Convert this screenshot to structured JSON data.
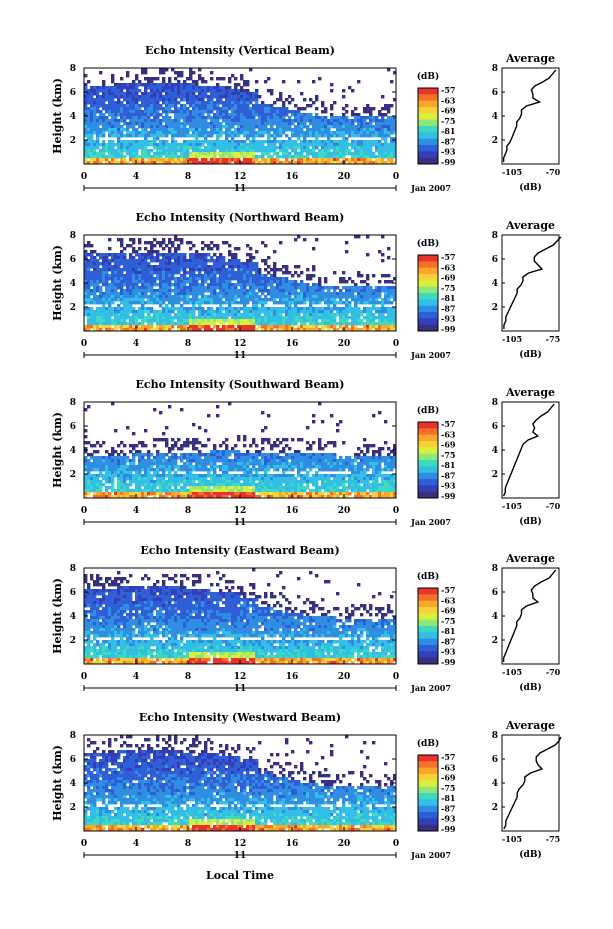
{
  "panels": [
    {
      "title": "Echo Intensity (Vertical Beam)",
      "avg_title": "Average",
      "avg_xticks": [
        "-105",
        "-70"
      ],
      "avg_profile": [
        -72,
        -74,
        -76,
        -80,
        -85,
        -87,
        -86,
        -86,
        -82,
        -90,
        -93,
        -93,
        -94,
        -96,
        -96,
        -97,
        -98,
        -99,
        -100,
        -102,
        -102,
        -103,
        -104,
        -104
      ],
      "echo_top_km": [
        6.5,
        6.6,
        6.8,
        6.8,
        6.8,
        6.8,
        6.7,
        6.6,
        6.5,
        6.3,
        6.0,
        5.0,
        4.7,
        4.5,
        4.2,
        4.0,
        3.9,
        3.9,
        3.9,
        3.9,
        3.9
      ]
    },
    {
      "title": "Echo Intensity (Northward Beam)",
      "avg_title": "Average",
      "avg_xticks": [
        "-105",
        "-75"
      ],
      "avg_profile": [
        -74,
        -76,
        -78,
        -82,
        -86,
        -88,
        -88,
        -86,
        -84,
        -91,
        -94,
        -94,
        -95,
        -97,
        -97,
        -98,
        -99,
        -100,
        -101,
        -102,
        -103,
        -103,
        -104,
        -104
      ],
      "echo_top_km": [
        6.4,
        6.5,
        6.6,
        6.6,
        6.6,
        6.5,
        6.5,
        6.4,
        6.3,
        6.1,
        5.8,
        4.8,
        4.5,
        4.3,
        4.0,
        3.8,
        3.8,
        3.7,
        3.7,
        3.7,
        3.7
      ]
    },
    {
      "title": "Echo Intensity (Southward Beam)",
      "avg_title": "Average",
      "avg_xticks": [
        "-105",
        "-70"
      ],
      "avg_profile": [
        -73,
        -75,
        -77,
        -81,
        -84,
        -86,
        -85,
        -86,
        -83,
        -89,
        -92,
        -93,
        -94,
        -95,
        -96,
        -97,
        -98,
        -99,
        -100,
        -101,
        -102,
        -103,
        -103,
        -104
      ],
      "echo_top_km": [
        3.6,
        3.6,
        3.6,
        3.7,
        3.8,
        3.8,
        3.8,
        3.8,
        3.9,
        3.9,
        3.8,
        3.8,
        3.8,
        3.8,
        3.8,
        3.7,
        3.6,
        3.6,
        3.6,
        3.6,
        3.6
      ]
    },
    {
      "title": "Echo Intensity (Eastward Beam)",
      "avg_title": "Average",
      "avg_xticks": [
        "-105",
        "-70"
      ],
      "avg_profile": [
        -72,
        -74,
        -76,
        -81,
        -85,
        -87,
        -86,
        -86,
        -83,
        -90,
        -93,
        -93,
        -94,
        -96,
        -96,
        -97,
        -98,
        -99,
        -100,
        -101,
        -102,
        -103,
        -104,
        -104
      ],
      "echo_top_km": [
        6.2,
        6.3,
        6.4,
        6.4,
        6.4,
        6.4,
        6.3,
        6.2,
        6.1,
        5.9,
        5.6,
        4.8,
        4.5,
        4.3,
        4.0,
        3.9,
        3.8,
        3.8,
        3.8,
        3.8,
        3.8
      ]
    },
    {
      "title": "Echo Intensity (Westward Beam)",
      "avg_title": "Average",
      "avg_xticks": [
        "-105",
        "-75"
      ],
      "avg_profile": [
        -74,
        -75,
        -77,
        -81,
        -85,
        -87,
        -87,
        -86,
        -84,
        -90,
        -93,
        -93,
        -94,
        -96,
        -97,
        -97,
        -98,
        -99,
        -100,
        -101,
        -102,
        -103,
        -103,
        -104
      ],
      "echo_top_km": [
        6.5,
        6.6,
        6.7,
        6.7,
        6.7,
        6.7,
        6.6,
        6.5,
        6.4,
        6.2,
        5.9,
        4.9,
        4.6,
        4.3,
        4.0,
        3.8,
        3.8,
        3.7,
        3.7,
        3.7,
        3.7
      ]
    }
  ],
  "labels": {
    "ylabel": "Height (km)",
    "avg_xlabel": "(dB)",
    "cb_title": "(dB)",
    "date": "Jan 2007",
    "day": "11",
    "xlabel": "Local Time"
  },
  "axes": {
    "xticks": [
      "0",
      "4",
      "8",
      "12",
      "16",
      "20",
      "0"
    ],
    "yticks": [
      "2",
      "4",
      "6",
      "8"
    ],
    "avg_yticks": [
      "2",
      "4",
      "6",
      "8"
    ]
  },
  "colorbar": {
    "labels": [
      "-57",
      "-63",
      "-69",
      "-75",
      "-81",
      "-87",
      "-93",
      "-99"
    ],
    "colors": [
      "#e8342a",
      "#f5702a",
      "#f8a72a",
      "#f6d23a",
      "#d9ef3e",
      "#8fe67a",
      "#3fd9c0",
      "#33bfe5",
      "#2f8ee2",
      "#2e5fd6",
      "#3140b8",
      "#37307f"
    ]
  },
  "chart_data": [
    {
      "type": "heatmap",
      "title": "Echo Intensity (Vertical Beam)",
      "xlabel": "",
      "ylabel": "Height (km)",
      "xlim": [
        0,
        24
      ],
      "ylim": [
        0,
        8
      ],
      "zlim": [
        -99,
        -57
      ]
    },
    {
      "type": "heatmap",
      "title": "Echo Intensity (Northward Beam)",
      "xlabel": "",
      "ylabel": "Height (km)",
      "xlim": [
        0,
        24
      ],
      "ylim": [
        0,
        8
      ],
      "zlim": [
        -99,
        -57
      ]
    },
    {
      "type": "heatmap",
      "title": "Echo Intensity (Southward Beam)",
      "xlabel": "",
      "ylabel": "Height (km)",
      "xlim": [
        0,
        24
      ],
      "ylim": [
        0,
        8
      ],
      "zlim": [
        -99,
        -57
      ]
    },
    {
      "type": "heatmap",
      "title": "Echo Intensity (Eastward Beam)",
      "xlabel": "",
      "ylabel": "Height (km)",
      "xlim": [
        0,
        24
      ],
      "ylim": [
        0,
        8
      ],
      "zlim": [
        -99,
        -57
      ]
    },
    {
      "type": "heatmap",
      "title": "Echo Intensity (Westward Beam)",
      "xlabel": "Local Time",
      "ylabel": "Height (km)",
      "xlim": [
        0,
        24
      ],
      "ylim": [
        0,
        8
      ],
      "zlim": [
        -99,
        -57
      ]
    }
  ]
}
